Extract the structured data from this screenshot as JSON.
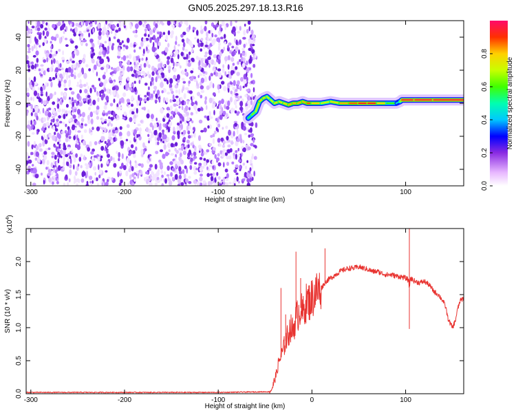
{
  "title": "GN05.2025.297.18.13.R16",
  "chart_data": [
    {
      "type": "heatmap",
      "xlabel": "Height of straight line (km)",
      "ylabel": "Frequency (Hz)",
      "xlim": [
        -305,
        162
      ],
      "ylim": [
        -50,
        50
      ],
      "x_ticks": [
        -300,
        -200,
        -100,
        0,
        100
      ],
      "y_ticks": [
        -40,
        -20,
        0,
        20,
        40
      ],
      "colorbar": {
        "label": "Normalized spectral amplitude",
        "range": [
          0,
          1
        ],
        "ticks": [
          0.0,
          0.2,
          0.4,
          0.6,
          0.8
        ],
        "tick_labels": [
          "0.0",
          "0.2",
          "0.4",
          "0.6",
          "0.8"
        ]
      },
      "noise_region": {
        "x_from": -305,
        "x_to": -62
      },
      "signal_track": {
        "x": [
          -68,
          -64,
          -60,
          -56,
          -52,
          -48,
          -44,
          -40,
          -35,
          -30,
          -25,
          -20,
          -15,
          -10,
          -5,
          0,
          10,
          20,
          30,
          40,
          50,
          60,
          70,
          80,
          90,
          94,
          96,
          110,
          130,
          162
        ],
        "freq": [
          -9,
          -7,
          -5,
          1,
          3,
          4,
          2,
          0,
          1,
          0,
          -1,
          0,
          0,
          1,
          0,
          0,
          0,
          1,
          0,
          0,
          0,
          0,
          0,
          0,
          0,
          1,
          2,
          2,
          2,
          2
        ],
        "amplitude": [
          0.5,
          0.6,
          0.7,
          0.75,
          0.8,
          0.75,
          0.7,
          0.75,
          0.8,
          0.75,
          0.85,
          0.8,
          0.85,
          0.8,
          0.85,
          0.9,
          0.7,
          0.75,
          0.8,
          0.85,
          0.9,
          0.95,
          0.9,
          0.7,
          0.5,
          0.4,
          0.95,
          0.95,
          0.95,
          0.95
        ]
      }
    },
    {
      "type": "line",
      "xlabel": "Height of straight line (km)",
      "ylabel": "SNR (10 * v/v)",
      "y_multiplier": "(x10",
      "y_multiplier_exp": "4",
      "y_multiplier_close": ")",
      "xlim": [
        -305,
        162
      ],
      "ylim": [
        0,
        2.5
      ],
      "x_ticks": [
        -300,
        -200,
        -100,
        0,
        100
      ],
      "y_ticks": [
        0.0,
        0.5,
        1.0,
        1.5,
        2.0
      ],
      "y_tick_labels": [
        "0.0",
        "0.5",
        "1.0",
        "1.5",
        "2.0"
      ],
      "series": [
        {
          "name": "SNR",
          "color": "#e8322f",
          "x": [
            -305,
            -200,
            -100,
            -45,
            -42,
            -38,
            -35,
            -32,
            -30,
            -28,
            -25,
            -23,
            -20,
            -18,
            -15,
            -12,
            -10,
            -7,
            -5,
            -2,
            0,
            5,
            10,
            15,
            20,
            25,
            30,
            35,
            40,
            45,
            50,
            55,
            60,
            65,
            70,
            75,
            80,
            85,
            90,
            95,
            100,
            103,
            104,
            105,
            110,
            115,
            120,
            125,
            130,
            135,
            140,
            143,
            145,
            148,
            150,
            153,
            155,
            158,
            162
          ],
          "y": [
            0.02,
            0.02,
            0.02,
            0.03,
            0.1,
            0.3,
            0.5,
            0.6,
            0.7,
            0.8,
            0.9,
            1.0,
            0.95,
            1.1,
            1.2,
            1.3,
            1.2,
            1.35,
            1.4,
            1.4,
            1.45,
            1.55,
            1.6,
            1.7,
            1.75,
            1.8,
            1.85,
            1.88,
            1.9,
            1.9,
            1.92,
            1.9,
            1.88,
            1.85,
            1.85,
            1.82,
            1.8,
            1.8,
            1.78,
            1.77,
            1.75,
            1.72,
            1.6,
            1.75,
            1.7,
            1.68,
            1.7,
            1.65,
            1.55,
            1.5,
            1.4,
            1.3,
            1.15,
            1.05,
            1.0,
            1.1,
            1.25,
            1.4,
            1.45
          ]
        }
      ],
      "spikes": [
        {
          "x": -33,
          "y": 1.6
        },
        {
          "x": -28,
          "y": 1.2
        },
        {
          "x": -17,
          "y": 2.15
        },
        {
          "x": -12,
          "y": 1.75
        },
        {
          "x": 14,
          "y": 2.2
        },
        {
          "x": 104,
          "y": 2.5
        },
        {
          "x": 104,
          "y": 0.98
        }
      ]
    }
  ]
}
